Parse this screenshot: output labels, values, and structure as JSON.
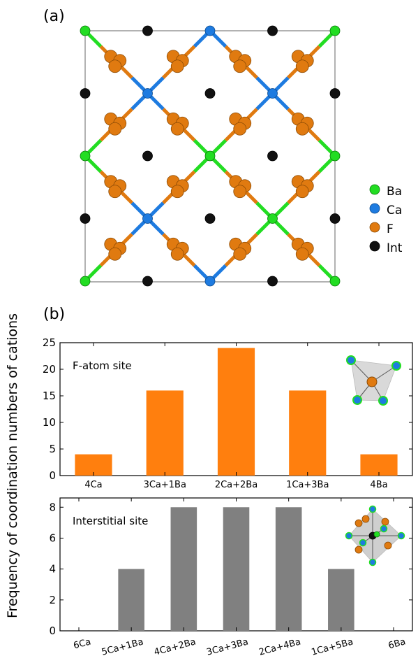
{
  "panel_a": {
    "label": "(a)",
    "legend": [
      {
        "name": "Ba",
        "color": "#22dd22"
      },
      {
        "name": "Ca",
        "color": "#1e7be0"
      },
      {
        "name": "F",
        "color": "#e07a10"
      },
      {
        "name": "Int",
        "color": "#111111"
      }
    ]
  },
  "panel_b": {
    "label": "(b)",
    "ylabel": "Frequency of coordination numbers of cations"
  },
  "chart_data": [
    {
      "type": "bar",
      "title": "F-atom site",
      "categories": [
        "4Ca",
        "3Ca+1Ba",
        "2Ca+2Ba",
        "1Ca+3Ba",
        "4Ba"
      ],
      "values": [
        4,
        16,
        24,
        16,
        4
      ],
      "ylim": [
        0,
        25
      ],
      "yticks": [
        0,
        5,
        10,
        15,
        20,
        25
      ],
      "color": "#ff7f0e"
    },
    {
      "type": "bar",
      "title": "Interstitial site",
      "categories": [
        "6Ca",
        "5Ca+1Ba",
        "4Ca+2Ba",
        "3Ca+3Ba",
        "2Ca+4Ba",
        "1Ca+5Ba",
        "6Ba"
      ],
      "values": [
        0,
        4,
        8,
        8,
        8,
        4,
        0
      ],
      "ylim": [
        0,
        8.6
      ],
      "yticks": [
        0,
        2,
        4,
        6,
        8
      ],
      "color": "#808080"
    }
  ]
}
